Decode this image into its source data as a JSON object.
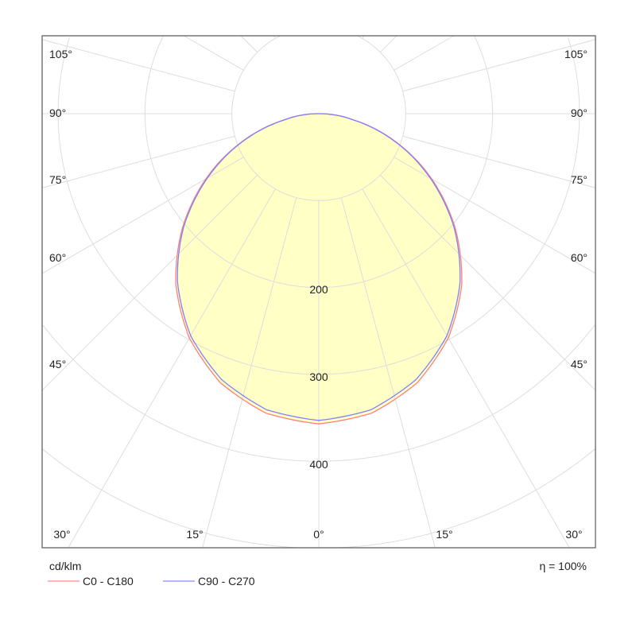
{
  "chart_data": {
    "type": "polar",
    "unit_label": "cd/klm",
    "efficiency_label": "η = 100%",
    "radial_ticks": [
      100,
      200,
      300,
      400,
      500,
      600
    ],
    "radial_tick_labels": [
      "200",
      "300",
      "400"
    ],
    "angle_labels_left": [
      "105°",
      "90°",
      "75°",
      "60°",
      "45°"
    ],
    "angle_labels_right": [
      "105°",
      "90°",
      "75°",
      "60°",
      "45°"
    ],
    "angle_labels_bottom": [
      "30°",
      "15°",
      "0°",
      "15°",
      "30°"
    ],
    "angles": [
      0,
      10,
      20,
      30,
      40,
      50,
      60,
      70,
      80,
      90
    ],
    "series": [
      {
        "name": "C0 - C180",
        "color": "#ff7f7f",
        "values": [
          357,
          350,
          330,
          298,
          256,
          205,
          150,
          94,
          40,
          2
        ]
      },
      {
        "name": "C90 - C270",
        "color": "#7f7fff",
        "values": [
          353,
          346,
          326,
          295,
          253,
          203,
          148,
          93,
          39,
          2
        ]
      }
    ],
    "fill_color": "#ffffc0",
    "grid": true
  }
}
